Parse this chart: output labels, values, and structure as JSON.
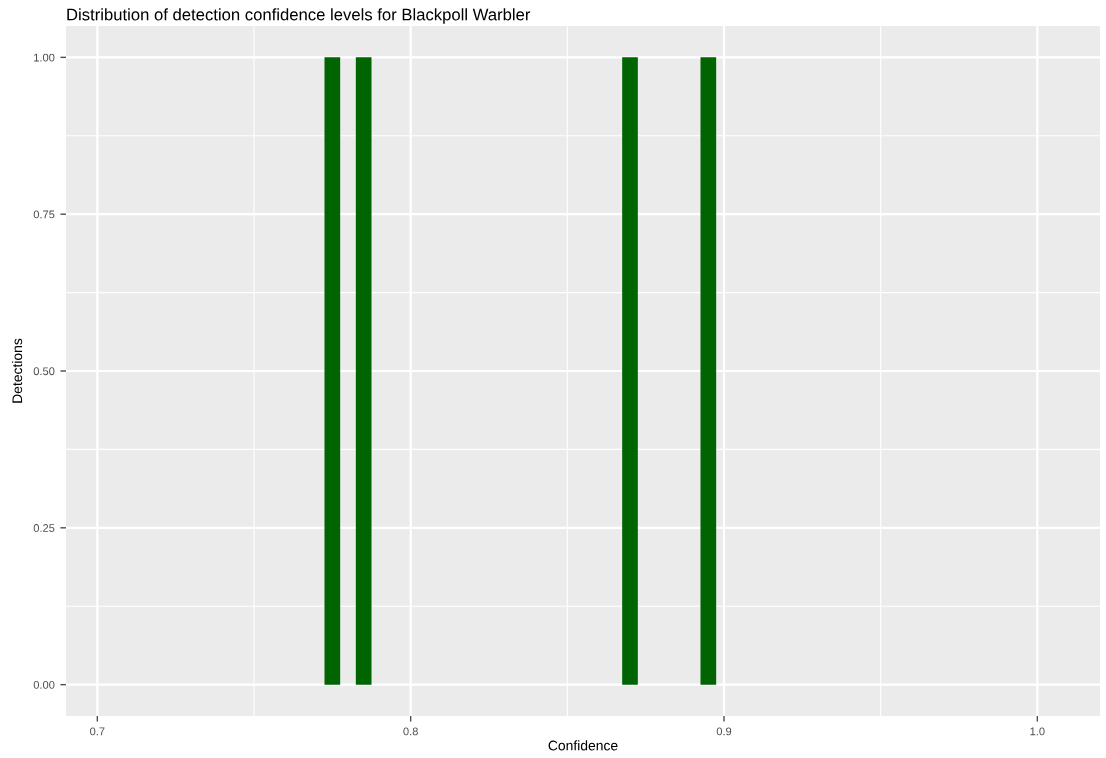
{
  "chart_data": {
    "type": "histogram",
    "title": "Distribution of detection confidence levels for Blackpoll Warbler",
    "xlabel": "Confidence",
    "ylabel": "Detections",
    "bins": [
      0.7725,
      0.7775,
      0.7825,
      0.7875,
      0.7925,
      0.7975,
      0.8025,
      0.8075,
      0.8125,
      0.8175,
      0.8225,
      0.8275,
      0.8325,
      0.8375,
      0.8425,
      0.8475,
      0.8525,
      0.8575,
      0.8625,
      0.8675,
      0.8725,
      0.8775,
      0.8825,
      0.8875,
      0.8925,
      0.8975
    ],
    "values": [
      1,
      0,
      1,
      0,
      0,
      0,
      0,
      0,
      0,
      0,
      0,
      0,
      0,
      0,
      0,
      0,
      0,
      0,
      0,
      1,
      0,
      0,
      0,
      0,
      1
    ],
    "color": "#006400",
    "xlim": [
      0.69,
      1.02
    ],
    "ylim": [
      -0.05,
      1.05
    ],
    "xticks": [
      {
        "value": 0.7,
        "label": "0.7"
      },
      {
        "value": 0.8,
        "label": "0.8"
      },
      {
        "value": 0.9,
        "label": "0.9"
      },
      {
        "value": 1.0,
        "label": "1.0"
      }
    ],
    "yticks": [
      {
        "value": 0,
        "label": "0.00"
      },
      {
        "value": 0.25,
        "label": "0.25"
      },
      {
        "value": 0.5,
        "label": "0.50"
      },
      {
        "value": 0.75,
        "label": "0.75"
      },
      {
        "value": 1,
        "label": "1.00"
      }
    ],
    "grid": true
  }
}
